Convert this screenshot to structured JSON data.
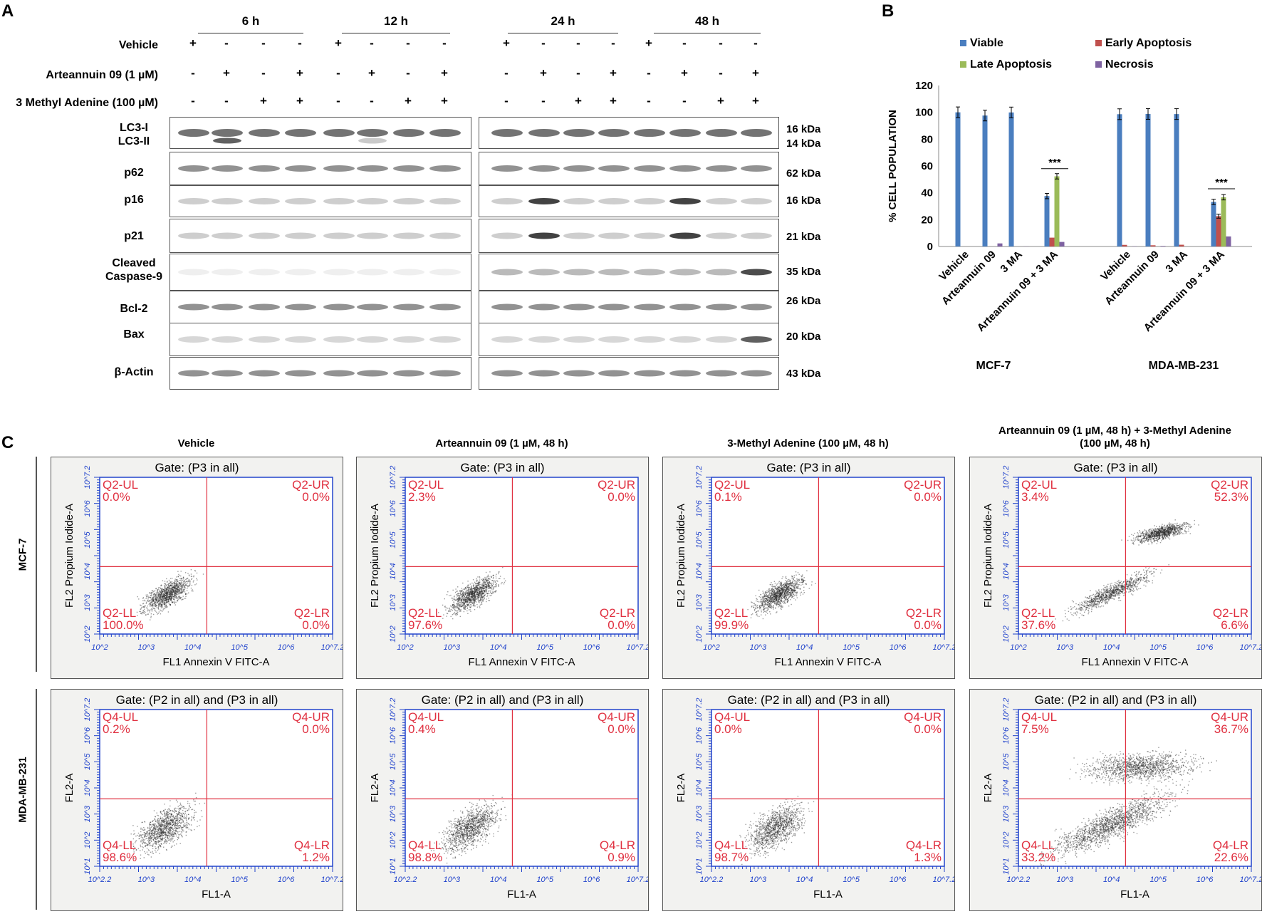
{
  "panels": {
    "a": "A",
    "b": "B",
    "c": "C"
  },
  "western": {
    "time_headers": [
      "6 h",
      "12 h",
      "24 h",
      "48 h"
    ],
    "treatments": [
      {
        "label": "Vehicle",
        "signs": [
          "+",
          "-",
          "-",
          "-",
          "+",
          "-",
          "-",
          "-",
          "+",
          "-",
          "-",
          "-",
          "+",
          "-",
          "-",
          "-"
        ]
      },
      {
        "label": "Arteannuin 09 (1 µM)",
        "signs": [
          "-",
          "+",
          "-",
          "+",
          "-",
          "+",
          "-",
          "+",
          "-",
          "+",
          "-",
          "+",
          "-",
          "+",
          "-",
          "+"
        ]
      },
      {
        "label": "3 Methyl Adenine (100  µM)",
        "signs": [
          "-",
          "-",
          "+",
          "+",
          "-",
          "-",
          "+",
          "+",
          "-",
          "-",
          "+",
          "+",
          "-",
          "-",
          "+",
          "+"
        ]
      }
    ],
    "proteins": [
      {
        "name": "LC3-I\nLC3-II",
        "kda": "16 kDa\n14 kDa"
      },
      {
        "name": "p62",
        "kda": "62 kDa"
      },
      {
        "name": "p16",
        "kda": "16 kDa"
      },
      {
        "name": "p21",
        "kda": "21 kDa"
      },
      {
        "name": "Cleaved\nCaspase-9",
        "kda": "35 kDa"
      },
      {
        "name": "Bcl-2",
        "kda": "26 kDa"
      },
      {
        "name": "Bax",
        "kda": "20 kDa"
      },
      {
        "name": "β-Actin",
        "kda": "43 kDa"
      }
    ]
  },
  "chart_data": {
    "type": "bar",
    "ylabel": "% CELL POPULATION",
    "ylim": [
      0,
      120
    ],
    "yticks": [
      0,
      20,
      40,
      60,
      80,
      100,
      120
    ],
    "legend": [
      {
        "name": "Viable",
        "color": "#4a7ebf"
      },
      {
        "name": "Early Apoptosis",
        "color": "#c0504d"
      },
      {
        "name": "Late Apoptosis",
        "color": "#9bbb59"
      },
      {
        "name": "Necrosis",
        "color": "#7e62a1"
      }
    ],
    "groups": [
      {
        "name": "MCF-7",
        "categories": [
          "Vehicle",
          "Arteannuin 09",
          "3 MA",
          "Arteannuin 09 + 3 MA"
        ]
      },
      {
        "name": "MDA-MB-231",
        "categories": [
          "Vehicle",
          "Arteannuin 09",
          "3 MA",
          "Arteannuin 09 + 3 MA"
        ]
      }
    ],
    "series": [
      {
        "name": "Viable",
        "values": [
          100,
          97.6,
          99.9,
          37.6,
          98.6,
          98.8,
          98.7,
          33.2
        ],
        "errors": [
          4,
          4,
          4,
          2,
          4,
          4,
          4,
          2
        ]
      },
      {
        "name": "Early Apoptosis",
        "values": [
          0,
          0,
          0,
          6.6,
          1.2,
          0.9,
          1.3,
          22.6
        ],
        "errors": [
          0,
          0,
          0,
          0,
          0,
          0,
          0,
          1.5
        ]
      },
      {
        "name": "Late Apoptosis",
        "values": [
          0,
          0,
          0,
          52.3,
          0,
          0,
          0,
          36.7
        ],
        "errors": [
          0,
          0,
          0,
          2,
          0,
          0,
          0,
          2
        ]
      },
      {
        "name": "Necrosis",
        "values": [
          0,
          2.3,
          0.1,
          3.4,
          0.2,
          0.4,
          0,
          7.5
        ],
        "errors": [
          0,
          0,
          0,
          0,
          0,
          0,
          0,
          0
        ]
      }
    ],
    "significance": "***"
  },
  "flow": {
    "col_titles": [
      "Vehicle",
      "Arteannuin 09 (1 µM, 48 h)",
      "3-Methyl Adenine (100 µM, 48 h)",
      "Arteannuin 09 (1 µM, 48 h) + 3-Methyl Adenine\n(100 µM, 48 h)"
    ],
    "rows": [
      {
        "label": "MCF-7",
        "gate": "Gate: (P3 in all)",
        "xlabel": "FL1 Annexin V FITC-A",
        "ylabel": "FL2 Propium Iodide-A",
        "xticks": [
          "10^2",
          "10^3",
          "10^4",
          "10^5",
          "10^6",
          "10^7.2"
        ],
        "yticks": [
          "10^2",
          "10^3",
          "10^4",
          "10^5",
          "10^6",
          "10^7.2"
        ],
        "plots": [
          {
            "UL": "Q2-UL",
            "ULv": "0.0%",
            "UR": "Q2-UR",
            "URv": "0.0%",
            "LL": "Q2-LL",
            "LLv": "100.0%",
            "LR": "Q2-LR",
            "LRv": "0.0%"
          },
          {
            "UL": "Q2-UL",
            "ULv": "2.3%",
            "UR": "Q2-UR",
            "URv": "0.0%",
            "LL": "Q2-LL",
            "LLv": "97.6%",
            "LR": "Q2-LR",
            "LRv": "0.0%"
          },
          {
            "UL": "Q2-UL",
            "ULv": "0.1%",
            "UR": "Q2-UR",
            "URv": "0.0%",
            "LL": "Q2-LL",
            "LLv": "99.9%",
            "LR": "Q2-LR",
            "LRv": "0.0%"
          },
          {
            "UL": "Q2-UL",
            "ULv": "3.4%",
            "UR": "Q2-UR",
            "URv": "52.3%",
            "LL": "Q2-LL",
            "LLv": "37.6%",
            "LR": "Q2-LR",
            "LRv": "6.6%"
          }
        ]
      },
      {
        "label": "MDA-MB-231",
        "gate": "Gate: (P2 in all) and (P3 in all)",
        "xlabel": "FL1-A",
        "ylabel": "FL2-A",
        "xticks": [
          "10^2.2",
          "10^3",
          "10^4",
          "10^5",
          "10^6",
          "10^7.2"
        ],
        "yticks": [
          "10^1",
          "10^2",
          "10^3",
          "10^4",
          "10^5",
          "10^6",
          "10^7.2"
        ],
        "plots": [
          {
            "UL": "Q4-UL",
            "ULv": "0.2%",
            "UR": "Q4-UR",
            "URv": "0.0%",
            "LL": "Q4-LL",
            "LLv": "98.6%",
            "LR": "Q4-LR",
            "LRv": "1.2%"
          },
          {
            "UL": "Q4-UL",
            "ULv": "0.4%",
            "UR": "Q4-UR",
            "URv": "0.0%",
            "LL": "Q4-LL",
            "LLv": "98.8%",
            "LR": "Q4-LR",
            "LRv": "0.9%"
          },
          {
            "UL": "Q4-UL",
            "ULv": "0.0%",
            "UR": "Q4-UR",
            "URv": "0.0%",
            "LL": "Q4-LL",
            "LLv": "98.7%",
            "LR": "Q4-LR",
            "LRv": "1.3%"
          },
          {
            "UL": "Q4-UL",
            "ULv": "7.5%",
            "UR": "Q4-UR",
            "URv": "36.7%",
            "LL": "Q4-LL",
            "LLv": "33.2%",
            "LR": "Q4-LR",
            "LRv": "22.6%"
          }
        ]
      }
    ]
  }
}
